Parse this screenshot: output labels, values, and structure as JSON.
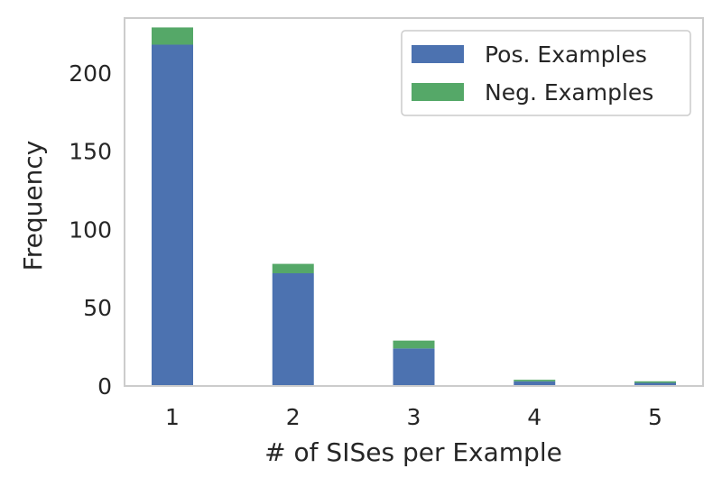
{
  "chart_data": {
    "type": "bar",
    "stacked": true,
    "categories": [
      "1",
      "2",
      "3",
      "4",
      "5"
    ],
    "series": [
      {
        "name": "Pos. Examples",
        "values": [
          218,
          72,
          24,
          3,
          2
        ],
        "color": "#4c72b0"
      },
      {
        "name": "Neg. Examples",
        "values": [
          11,
          6,
          5,
          1,
          1
        ],
        "color": "#55a868"
      }
    ],
    "xlabel": "# of SISes per Example",
    "ylabel": "Frequency",
    "yticks": [
      0,
      50,
      100,
      150,
      200
    ],
    "ylim": [
      0,
      235
    ],
    "grid": false,
    "legend_position": "top-right"
  }
}
